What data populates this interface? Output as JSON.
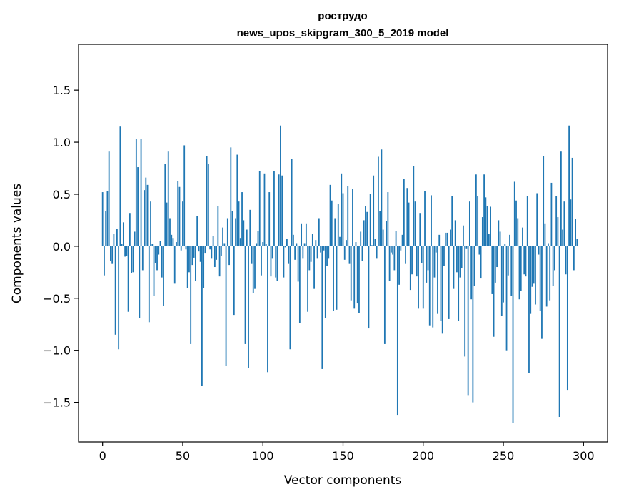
{
  "chart_data": {
    "type": "bar",
    "title_line1": "рострудо",
    "title_line2": "news_upos_skipgram_300_5_2019 model",
    "xlabel": "Vector components",
    "ylabel": "Components values",
    "xlim": [
      -15,
      315
    ],
    "ylim": [
      -1.88,
      1.94
    ],
    "xticks": [
      0,
      50,
      100,
      150,
      200,
      250,
      300
    ],
    "yticks": [
      -1.5,
      -1.0,
      -0.5,
      0.0,
      0.5,
      1.0,
      1.5
    ],
    "ytick_labels": [
      "−1.5",
      "−1.0",
      "−0.5",
      "0.0",
      "0.5",
      "1.0",
      "1.5"
    ],
    "bar_color": "#1f77b4",
    "grid": false,
    "values": [
      0.52,
      -0.28,
      0.34,
      0.53,
      0.91,
      -0.14,
      -0.17,
      0.12,
      -0.85,
      0.17,
      -0.99,
      1.15,
      0.02,
      0.23,
      -0.1,
      -0.09,
      -0.63,
      0.32,
      -0.26,
      -0.25,
      0.14,
      1.03,
      0.76,
      -0.69,
      1.03,
      -0.23,
      0.54,
      0.66,
      0.59,
      -0.73,
      0.43,
      0.02,
      -0.48,
      -0.16,
      -0.23,
      -0.08,
      0.05,
      -0.3,
      -0.57,
      0.79,
      0.42,
      0.91,
      0.27,
      0.11,
      0.08,
      -0.36,
      0.04,
      0.63,
      0.57,
      -0.04,
      0.43,
      0.97,
      -0.03,
      -0.4,
      -0.25,
      -0.94,
      -0.18,
      -0.11,
      -0.33,
      0.29,
      -0.05,
      -0.15,
      -1.34,
      -0.4,
      -0.07,
      0.87,
      0.79,
      -0.03,
      -0.12,
      0.1,
      -0.2,
      -0.13,
      0.39,
      -0.29,
      -0.09,
      0.18,
      0.03,
      -1.15,
      0.27,
      -0.18,
      0.95,
      0.34,
      -0.66,
      0.27,
      0.88,
      0.43,
      0.08,
      0.52,
      0.25,
      -0.94,
      0.16,
      -1.17,
      0.35,
      -0.17,
      -0.45,
      -0.41,
      0.03,
      0.15,
      0.72,
      -0.28,
      0.04,
      0.7,
      0.02,
      -1.21,
      0.52,
      -0.29,
      -0.12,
      0.72,
      -0.3,
      -0.33,
      0.69,
      1.16,
      0.68,
      -0.3,
      -0.01,
      0.07,
      -0.17,
      -0.99,
      0.84,
      0.11,
      -0.13,
      0.03,
      -0.34,
      -0.74,
      0.22,
      -0.12,
      0.03,
      0.22,
      -0.63,
      -0.23,
      -0.15,
      0.12,
      -0.41,
      0.06,
      -0.12,
      0.27,
      -0.06,
      -1.18,
      -0.04,
      -0.69,
      -0.19,
      -0.12,
      0.59,
      0.44,
      -0.62,
      0.27,
      -0.61,
      0.41,
      0.09,
      0.7,
      0.51,
      -0.13,
      0.06,
      0.58,
      -0.17,
      -0.52,
      0.55,
      -0.6,
      0.04,
      -0.55,
      -0.64,
      0.14,
      -0.14,
      0.25,
      0.39,
      0.33,
      -0.79,
      0.5,
      0.01,
      0.68,
      0.07,
      -0.12,
      0.86,
      0.34,
      0.93,
      0.16,
      -0.94,
      0.24,
      0.52,
      -0.33,
      -0.06,
      -0.08,
      -0.23,
      0.15,
      -1.62,
      -0.37,
      -0.04,
      0.11,
      0.65,
      -0.17,
      0.56,
      0.42,
      -0.42,
      -0.27,
      0.77,
      0.43,
      -0.29,
      -0.6,
      0.32,
      -0.16,
      -0.6,
      0.53,
      -0.35,
      -0.23,
      -0.76,
      0.49,
      -0.78,
      -0.3,
      -0.06,
      -0.65,
      0.11,
      -0.72,
      -0.84,
      -0.19,
      0.13,
      0.13,
      -0.7,
      0.16,
      0.48,
      -0.41,
      0.25,
      -0.25,
      -0.72,
      -0.3,
      -0.21,
      0.2,
      -1.06,
      -0.02,
      -1.43,
      0.43,
      -0.51,
      -1.5,
      -0.38,
      0.69,
      0.48,
      -0.08,
      -0.31,
      0.28,
      0.69,
      0.47,
      0.39,
      0.12,
      0.38,
      -0.46,
      -0.87,
      -0.35,
      -0.2,
      0.25,
      0.14,
      -0.67,
      -0.54,
      0.02,
      -1.0,
      -0.28,
      0.11,
      -0.48,
      -1.7,
      0.62,
      0.44,
      0.27,
      -0.51,
      -0.43,
      0.18,
      -0.27,
      -0.29,
      0.48,
      -1.22,
      -0.65,
      -0.39,
      -0.36,
      -0.56,
      0.51,
      -0.08,
      -0.62,
      -0.89,
      0.87,
      0.22,
      -0.58,
      0.03,
      -0.52,
      0.61,
      -0.38,
      -0.23,
      0.48,
      0.28,
      -1.64,
      0.91,
      0.16,
      0.43,
      -0.27,
      -1.38,
      1.16,
      0.45,
      0.85,
      -0.23,
      0.26,
      0.07
    ]
  }
}
